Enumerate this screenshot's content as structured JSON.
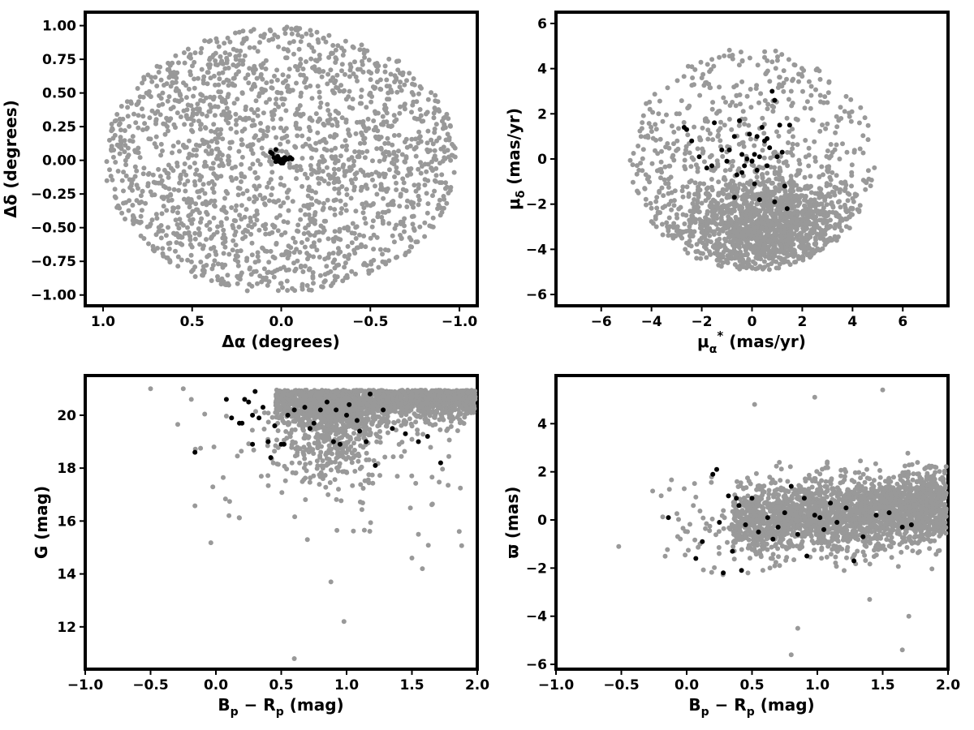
{
  "chart_data": [
    {
      "id": "position",
      "type": "scatter",
      "xlabel": "Δα (degrees)",
      "ylabel": "Δδ (degrees)",
      "xlim": [
        1.1,
        -1.1
      ],
      "ylim": [
        -1.08,
        1.1
      ],
      "x_inverted": true,
      "xticks": [
        1.0,
        0.5,
        0.0,
        -0.5,
        -1.0
      ],
      "xtick_labels": [
        "1.0",
        "0.5",
        "0.0",
        "−0.5",
        "−1.0"
      ],
      "yticks": [
        -1.0,
        -0.75,
        -0.5,
        -0.25,
        0.0,
        0.25,
        0.5,
        0.75,
        1.0
      ],
      "ytick_labels": [
        "−1.00",
        "−0.75",
        "−0.50",
        "−0.25",
        "0.00",
        "0.25",
        "0.50",
        "0.75",
        "1.00"
      ],
      "grid": false,
      "series": [
        {
          "role": "field",
          "color": "#999999",
          "distribution": "uniform-disk",
          "center": [
            0.0,
            0.0
          ],
          "radius": 1.0,
          "count": 1900,
          "points": [
            [
              0.05,
              0.9
            ],
            [
              -0.6,
              0.5
            ],
            [
              0.7,
              -0.4
            ],
            [
              -0.3,
              -0.8
            ],
            [
              0.9,
              0.1
            ],
            [
              -0.95,
              0.0
            ],
            [
              0.2,
              0.3
            ],
            [
              -0.45,
              -0.2
            ]
          ]
        },
        {
          "role": "members",
          "color": "#000000",
          "points": [
            [
              0.06,
              0.06
            ],
            [
              0.05,
              0.05
            ],
            [
              0.03,
              0.08
            ],
            [
              0.02,
              0.03
            ],
            [
              0.01,
              0.01
            ],
            [
              0.0,
              0.0
            ],
            [
              -0.01,
              0.01
            ],
            [
              -0.02,
              0.0
            ],
            [
              -0.03,
              0.01
            ],
            [
              -0.04,
              0.01
            ],
            [
              -0.05,
              0.02
            ],
            [
              0.0,
              -0.02
            ],
            [
              0.01,
              -0.01
            ],
            [
              -0.01,
              -0.02
            ],
            [
              0.03,
              -0.01
            ],
            [
              -0.02,
              0.02
            ],
            [
              0.02,
              0.0
            ],
            [
              -0.06,
              0.01
            ],
            [
              0.04,
              0.02
            ],
            [
              -0.01,
              0.0
            ]
          ]
        }
      ]
    },
    {
      "id": "proper-motion",
      "type": "scatter",
      "xlabel": "μα* (mas/yr)",
      "ylabel": "μδ (mas/yr)",
      "xlim": [
        -7.8,
        7.8
      ],
      "ylim": [
        -6.5,
        6.5
      ],
      "xticks": [
        -6,
        -4,
        -2,
        0,
        2,
        4,
        6
      ],
      "xtick_labels": [
        "−6",
        "−4",
        "−2",
        "0",
        "2",
        "4",
        "6"
      ],
      "yticks": [
        -6,
        -4,
        -2,
        0,
        2,
        4,
        6
      ],
      "ytick_labels": [
        "−6",
        "−4",
        "−2",
        "0",
        "2",
        "4",
        "6"
      ],
      "grid": false,
      "series": [
        {
          "role": "field",
          "color": "#999999",
          "distribution": "disk-radius-5-dense-near-(0.5,-3)",
          "center": [
            0.0,
            0.0
          ],
          "radius": 5.0,
          "count": 2000,
          "points": [
            [
              -4.5,
              -0.5
            ],
            [
              4.5,
              -1.0
            ],
            [
              0.5,
              4.5
            ],
            [
              0.0,
              -4.8
            ],
            [
              -2.0,
              -3.5
            ],
            [
              2.0,
              -3.5
            ],
            [
              3.0,
              2.5
            ],
            [
              -3.0,
              2.0
            ]
          ]
        },
        {
          "role": "members",
          "color": "#000000",
          "points": [
            [
              -2.7,
              1.4
            ],
            [
              -2.6,
              1.3
            ],
            [
              -2.4,
              0.8
            ],
            [
              -2.1,
              0.1
            ],
            [
              -1.8,
              -0.4
            ],
            [
              -1.5,
              1.6
            ],
            [
              -1.2,
              0.4
            ],
            [
              -1.0,
              -0.1
            ],
            [
              -0.7,
              1.0
            ],
            [
              -0.6,
              -0.7
            ],
            [
              -0.5,
              1.7
            ],
            [
              -0.4,
              0.2
            ],
            [
              -0.3,
              -0.3
            ],
            [
              -0.2,
              0.0
            ],
            [
              -0.1,
              1.1
            ],
            [
              0.0,
              -0.1
            ],
            [
              0.1,
              0.2
            ],
            [
              0.2,
              -0.5
            ],
            [
              0.3,
              0.1
            ],
            [
              0.4,
              1.4
            ],
            [
              0.5,
              0.8
            ],
            [
              0.6,
              -0.3
            ],
            [
              0.7,
              0.5
            ],
            [
              0.8,
              3.0
            ],
            [
              0.9,
              2.6
            ],
            [
              1.0,
              0.1
            ],
            [
              1.1,
              1.5
            ],
            [
              1.2,
              0.3
            ],
            [
              1.3,
              -1.2
            ],
            [
              1.5,
              1.5
            ],
            [
              0.3,
              -1.8
            ],
            [
              -0.7,
              -1.7
            ],
            [
              0.9,
              -1.9
            ],
            [
              -0.4,
              -0.6
            ],
            [
              0.1,
              -1.1
            ],
            [
              1.4,
              -2.2
            ],
            [
              -1.6,
              -0.3
            ],
            [
              0.6,
              0.9
            ],
            [
              -0.9,
              0.4
            ],
            [
              0.2,
              1.0
            ]
          ]
        }
      ]
    },
    {
      "id": "cmd-g",
      "type": "scatter",
      "xlabel": "Bp − Rp (mag)",
      "ylabel": "G (mag)",
      "xlim": [
        -1.0,
        2.0
      ],
      "ylim": [
        10.4,
        21.5
      ],
      "xticks": [
        -1.0,
        -0.5,
        0.0,
        0.5,
        1.0,
        1.5,
        2.0
      ],
      "xtick_labels": [
        "−1.0",
        "−0.5",
        "0.0",
        "0.5",
        "1.0",
        "1.5",
        "2.0"
      ],
      "yticks": [
        12,
        14,
        16,
        18,
        20
      ],
      "ytick_labels": [
        "12",
        "14",
        "16",
        "18",
        "20"
      ],
      "grid": false,
      "series": [
        {
          "role": "field",
          "color": "#999999",
          "distribution": "dense-band-G20-21-color-0.5-2.0-with-tail-to-G17-near-0.9",
          "count": 2200,
          "points": [
            [
              -0.5,
              21.0
            ],
            [
              -0.25,
              21.0
            ],
            [
              0.98,
              12.2
            ],
            [
              0.6,
              10.8
            ],
            [
              0.88,
              13.7
            ],
            [
              0.1,
              16.2
            ],
            [
              1.55,
              15.5
            ],
            [
              1.58,
              14.2
            ],
            [
              1.5,
              14.6
            ],
            [
              0.7,
              15.3
            ]
          ]
        },
        {
          "role": "members",
          "color": "#000000",
          "points": [
            [
              -0.16,
              18.6
            ],
            [
              0.08,
              20.6
            ],
            [
              0.12,
              19.9
            ],
            [
              0.2,
              19.7
            ],
            [
              0.22,
              20.6
            ],
            [
              0.25,
              20.5
            ],
            [
              0.28,
              18.9
            ],
            [
              0.3,
              20.9
            ],
            [
              0.33,
              19.9
            ],
            [
              0.36,
              20.3
            ],
            [
              0.4,
              19.0
            ],
            [
              0.42,
              18.4
            ],
            [
              0.45,
              19.6
            ],
            [
              0.5,
              18.9
            ],
            [
              0.55,
              20.0
            ],
            [
              0.6,
              20.2
            ],
            [
              0.68,
              20.3
            ],
            [
              0.72,
              19.5
            ],
            [
              0.75,
              19.7
            ],
            [
              0.8,
              20.2
            ],
            [
              0.85,
              20.5
            ],
            [
              0.9,
              19.0
            ],
            [
              0.92,
              20.2
            ],
            [
              0.95,
              18.9
            ],
            [
              1.0,
              20.0
            ],
            [
              1.08,
              19.8
            ],
            [
              1.15,
              19.0
            ],
            [
              1.18,
              20.8
            ],
            [
              1.22,
              18.1
            ],
            [
              1.28,
              20.2
            ],
            [
              1.35,
              19.5
            ],
            [
              1.45,
              19.3
            ],
            [
              1.55,
              19.0
            ],
            [
              1.62,
              19.2
            ],
            [
              1.72,
              18.2
            ],
            [
              0.28,
              20.0
            ],
            [
              0.52,
              18.9
            ],
            [
              1.02,
              20.4
            ],
            [
              0.18,
              19.7
            ],
            [
              1.1,
              19.4
            ]
          ]
        }
      ]
    },
    {
      "id": "cmd-parallax",
      "type": "scatter",
      "xlabel": "Bp − Rp (mag)",
      "ylabel": "ϖ (mas)",
      "xlim": [
        -1.0,
        2.0
      ],
      "ylim": [
        -6.2,
        6.0
      ],
      "xticks": [
        -1.0,
        -0.5,
        0.0,
        0.5,
        1.0,
        1.5,
        2.0
      ],
      "xtick_labels": [
        "−1.0",
        "−0.5",
        "0.0",
        "0.5",
        "1.0",
        "1.5",
        "2.0"
      ],
      "yticks": [
        -6,
        -4,
        -2,
        0,
        2,
        4
      ],
      "ytick_labels": [
        "−6",
        "−4",
        "−2",
        "0",
        "2",
        "4"
      ],
      "grid": false,
      "series": [
        {
          "role": "field",
          "color": "#999999",
          "distribution": "band-parallax-0-spread-1-color-0.4-2.0",
          "count": 2300,
          "points": [
            [
              -0.52,
              -1.1
            ],
            [
              -0.26,
              1.2
            ],
            [
              1.5,
              5.4
            ],
            [
              0.98,
              5.1
            ],
            [
              0.52,
              4.8
            ],
            [
              0.8,
              -5.6
            ],
            [
              1.65,
              -5.4
            ],
            [
              0.85,
              -4.5
            ],
            [
              1.4,
              -3.3
            ],
            [
              1.7,
              -4.0
            ]
          ]
        },
        {
          "role": "members",
          "color": "#000000",
          "points": [
            [
              -0.14,
              0.1
            ],
            [
              0.07,
              -1.6
            ],
            [
              0.12,
              -0.9
            ],
            [
              0.2,
              1.9
            ],
            [
              0.23,
              2.1
            ],
            [
              0.25,
              -0.1
            ],
            [
              0.28,
              -2.2
            ],
            [
              0.32,
              1.0
            ],
            [
              0.35,
              -1.3
            ],
            [
              0.4,
              0.6
            ],
            [
              0.45,
              -0.2
            ],
            [
              0.5,
              0.9
            ],
            [
              0.55,
              -0.5
            ],
            [
              0.62,
              0.1
            ],
            [
              0.7,
              -0.3
            ],
            [
              0.75,
              0.3
            ],
            [
              0.8,
              1.4
            ],
            [
              0.85,
              -0.6
            ],
            [
              0.9,
              0.9
            ],
            [
              0.92,
              -1.5
            ],
            [
              0.98,
              0.2
            ],
            [
              1.05,
              -0.4
            ],
            [
              1.1,
              0.7
            ],
            [
              1.15,
              -0.1
            ],
            [
              1.22,
              0.5
            ],
            [
              1.28,
              -1.7
            ],
            [
              1.35,
              -0.7
            ],
            [
              1.45,
              0.2
            ],
            [
              1.55,
              0.3
            ],
            [
              1.65,
              -0.3
            ],
            [
              1.72,
              -0.2
            ],
            [
              0.42,
              -2.1
            ],
            [
              0.38,
              0.9
            ],
            [
              0.66,
              -0.8
            ],
            [
              1.02,
              0.1
            ]
          ]
        }
      ]
    }
  ]
}
